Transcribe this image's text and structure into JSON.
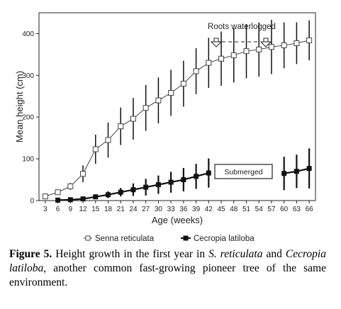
{
  "chart_data": {
    "type": "line",
    "ylabel": "Mean height (cm)",
    "xlabel": "Age (weeks)",
    "ytick_labels": [
      "0",
      "100",
      "200",
      "300",
      "400"
    ],
    "ylim": [
      0,
      450
    ],
    "x": [
      3,
      6,
      9,
      12,
      15,
      18,
      21,
      24,
      27,
      30,
      33,
      36,
      39,
      42,
      45,
      48,
      51,
      54,
      57,
      60,
      63,
      66
    ],
    "series": [
      {
        "name": "Senna reticulata",
        "marker": "open-square",
        "values": [
          10,
          20,
          34,
          64,
          123,
          145,
          178,
          196,
          222,
          240,
          258,
          280,
          310,
          330,
          340,
          348,
          358,
          362,
          368,
          372,
          377,
          384
        ],
        "errors": [
          0,
          0,
          8,
          20,
          35,
          42,
          45,
          50,
          55,
          55,
          55,
          55,
          55,
          60,
          65,
          65,
          65,
          65,
          65,
          55,
          50,
          48
        ]
      },
      {
        "name": "Cecropia latiloba",
        "marker": "filled-square",
        "values": [
          null,
          1,
          2,
          4,
          9,
          14,
          20,
          26,
          32,
          38,
          44,
          50,
          58,
          66,
          null,
          null,
          null,
          null,
          null,
          65,
          70,
          77
        ],
        "errors": [
          0,
          0,
          0,
          0,
          4,
          8,
          10,
          15,
          20,
          22,
          25,
          28,
          30,
          35,
          0,
          0,
          0,
          0,
          0,
          40,
          40,
          48
        ]
      }
    ],
    "annotations": {
      "roots": "Roots waterlogged",
      "submerged": "Submerged"
    }
  },
  "caption": {
    "figure_label": "Figure 5.",
    "text_1": " Height growth in the first year in ",
    "italic_1": "S. reticulata",
    "text_2": " and ",
    "italic_2": "Cecropia latiloba",
    "text_3": ", another common fast-growing pioneer tree of the same environment."
  }
}
